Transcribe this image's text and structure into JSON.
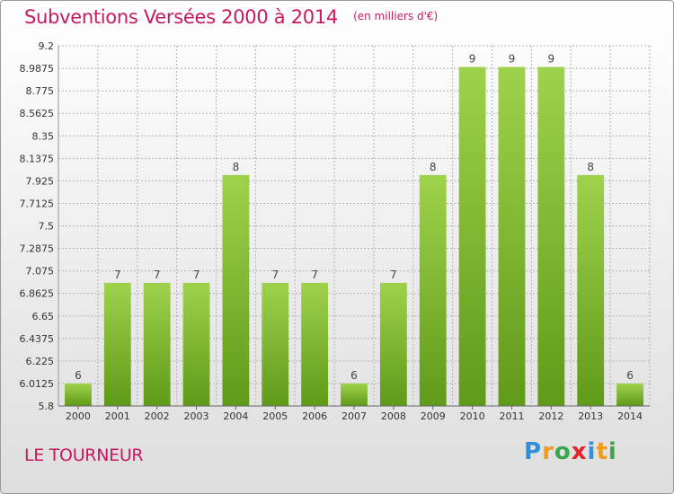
{
  "header": {
    "title": "Subventions Versées 2000 à 2014",
    "subtitle": "(en milliers d'€)"
  },
  "footer": {
    "commune": "LE TOURNEUR",
    "brand": "Proxiti",
    "brand_letters": [
      {
        "ch": "P",
        "color": "#2f8fd8"
      },
      {
        "ch": "r",
        "color": "#f29a1c"
      },
      {
        "ch": "o",
        "color": "#3aa84a"
      },
      {
        "ch": "x",
        "color": "#e0262f"
      },
      {
        "ch": "i",
        "color": "#2f8fd8"
      },
      {
        "ch": "t",
        "color": "#f29a1c"
      },
      {
        "ch": "i",
        "color": "#3aa84a"
      }
    ]
  },
  "colors": {
    "title": "#c8195f",
    "bar_top": "#9fd24c",
    "bar_bottom": "#5f9a18",
    "grid": "#b5b5b5"
  },
  "chart_data": {
    "type": "bar",
    "title": "Subventions Versées 2000 à 2014",
    "subtitle": "(en milliers d'€)",
    "xlabel": "",
    "ylabel": "",
    "categories": [
      "2000",
      "2001",
      "2002",
      "2003",
      "2004",
      "2005",
      "2006",
      "2007",
      "2008",
      "2009",
      "2010",
      "2011",
      "2012",
      "2013",
      "2014"
    ],
    "values": [
      6,
      7,
      7,
      7,
      8,
      7,
      7,
      6,
      7,
      8,
      9,
      9,
      9,
      8,
      6
    ],
    "data_labels": [
      "6",
      "7",
      "7",
      "7",
      "8",
      "7",
      "7",
      "6",
      "7",
      "8",
      "9",
      "9",
      "9",
      "8",
      "6"
    ],
    "ylim": [
      5.8,
      9.2
    ],
    "yticks": [
      5.8,
      6.0125,
      6.225,
      6.4375,
      6.65,
      6.8625,
      7.075,
      7.2875,
      7.5,
      7.7125,
      7.925,
      8.1375,
      8.35,
      8.5625,
      8.775,
      8.9875,
      9.2
    ],
    "ytick_labels": [
      "5.8",
      "6.0125",
      "6.225",
      "6.4375",
      "6.65",
      "6.8625",
      "7.075",
      "7.2875",
      "7.5",
      "7.7125",
      "7.925",
      "8.1375",
      "8.35",
      "8.5625",
      "8.775",
      "8.9875",
      "9.2"
    ],
    "bar_value_scale": {
      "6": 6.0125,
      "7": 6.9625,
      "8": 7.98,
      "9": 9.0
    }
  }
}
